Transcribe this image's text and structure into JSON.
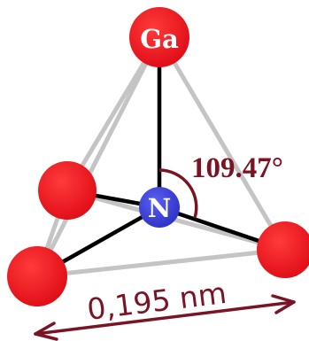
{
  "atoms": {
    "ga_label": "Ga",
    "n_label": "N"
  },
  "annotations": {
    "bond_angle": "109.47°",
    "bond_length": "0,195 nm"
  },
  "colors": {
    "ga_atom": "#e8141e",
    "n_atom": "#3a3fd6",
    "bond": "#000000",
    "tetrahedron_edge": "#c4c4c4",
    "annotation": "#7a1424"
  }
}
